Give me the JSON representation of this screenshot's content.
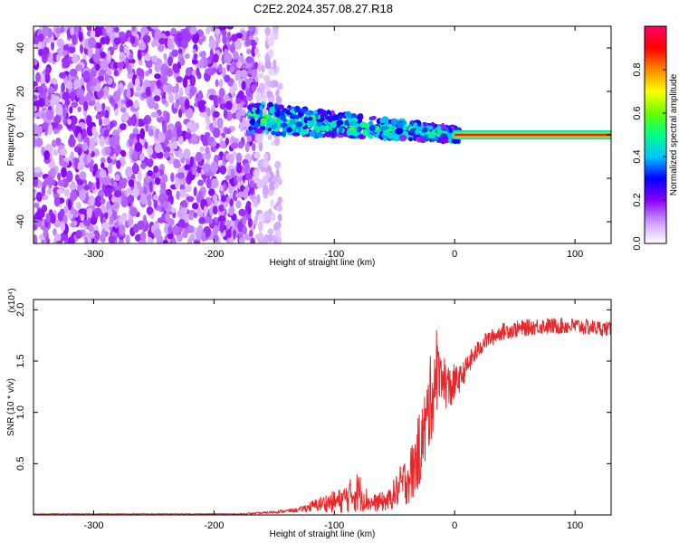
{
  "title": "C2E2.2024.357.08.27.R18",
  "chart_data": [
    {
      "type": "heatmap",
      "xlabel": "Height of straight line (km)",
      "ylabel": "Frequency (Hz)",
      "xlim": [
        -350,
        130
      ],
      "ylim": [
        -50,
        50
      ],
      "x_ticks": [
        -300,
        -200,
        -100,
        0,
        100
      ],
      "y_ticks": [
        -40,
        -20,
        0,
        20,
        40
      ],
      "colorbar": {
        "label": "Normalized spectral amplitude",
        "range": [
          0.0,
          1.0
        ],
        "ticks": [
          0.0,
          0.2,
          0.4,
          0.6,
          0.8
        ],
        "tick_labels": [
          "0.0",
          "0.2",
          "0.4",
          "0.6",
          "0.8"
        ],
        "colormap": [
          "#ffffff",
          "#cc99ff",
          "#8800ff",
          "#0000ff",
          "#00c8ff",
          "#00ff88",
          "#66ff00",
          "#ffff00",
          "#ff8800",
          "#ff0000",
          "#ff0066"
        ]
      },
      "regions": [
        {
          "x_range": [
            -350,
            -165
          ],
          "freq_range": [
            -50,
            50
          ],
          "amplitude": 0.05,
          "pattern": "noise"
        },
        {
          "x_range": [
            -165,
            -145
          ],
          "freq_range": [
            -50,
            50
          ],
          "amplitude": 0.02,
          "pattern": "sparse noise"
        },
        {
          "x_range": [
            -170,
            5
          ],
          "center_freq": [
            8,
            0
          ],
          "amplitude": [
            0.3,
            0.6
          ],
          "pattern": "drifting band"
        },
        {
          "x_range": [
            0,
            130
          ],
          "center_freq": 0,
          "amplitude": 1.0,
          "pattern": "narrow line"
        }
      ]
    },
    {
      "type": "line",
      "xlabel": "Height of straight line (km)",
      "ylabel": "SNR (10 * v/v)",
      "y_multiplier": "(x10⁴)",
      "xlim": [
        -350,
        130
      ],
      "ylim": [
        0,
        2.1
      ],
      "x_ticks": [
        -300,
        -200,
        -100,
        0,
        100
      ],
      "y_ticks": [
        0.5,
        1.0,
        1.5,
        2.0
      ],
      "y_tick_labels": [
        "0.5",
        "1.0",
        "1.5",
        "2.0"
      ],
      "color": "#e8272a",
      "profile": [
        {
          "x": -350,
          "y": 0.01,
          "noise": 0.004
        },
        {
          "x": -180,
          "y": 0.01,
          "noise": 0.005
        },
        {
          "x": -160,
          "y": 0.02,
          "noise": 0.01
        },
        {
          "x": -130,
          "y": 0.05,
          "noise": 0.02
        },
        {
          "x": -110,
          "y": 0.12,
          "noise": 0.08
        },
        {
          "x": -95,
          "y": 0.15,
          "noise": 0.12
        },
        {
          "x": -80,
          "y": 0.25,
          "noise": 0.2
        },
        {
          "x": -70,
          "y": 0.12,
          "noise": 0.08
        },
        {
          "x": -55,
          "y": 0.15,
          "noise": 0.1
        },
        {
          "x": -45,
          "y": 0.3,
          "noise": 0.2
        },
        {
          "x": -35,
          "y": 0.45,
          "noise": 0.3
        },
        {
          "x": -25,
          "y": 0.85,
          "noise": 0.4
        },
        {
          "x": -18,
          "y": 1.3,
          "noise": 0.45
        },
        {
          "x": -12,
          "y": 1.45,
          "noise": 0.25
        },
        {
          "x": -5,
          "y": 1.25,
          "noise": 0.25
        },
        {
          "x": 5,
          "y": 1.35,
          "noise": 0.12
        },
        {
          "x": 15,
          "y": 1.55,
          "noise": 0.1
        },
        {
          "x": 25,
          "y": 1.7,
          "noise": 0.08
        },
        {
          "x": 40,
          "y": 1.8,
          "noise": 0.08
        },
        {
          "x": 70,
          "y": 1.85,
          "noise": 0.08
        },
        {
          "x": 100,
          "y": 1.85,
          "noise": 0.08
        },
        {
          "x": 130,
          "y": 1.82,
          "noise": 0.07
        }
      ]
    }
  ]
}
